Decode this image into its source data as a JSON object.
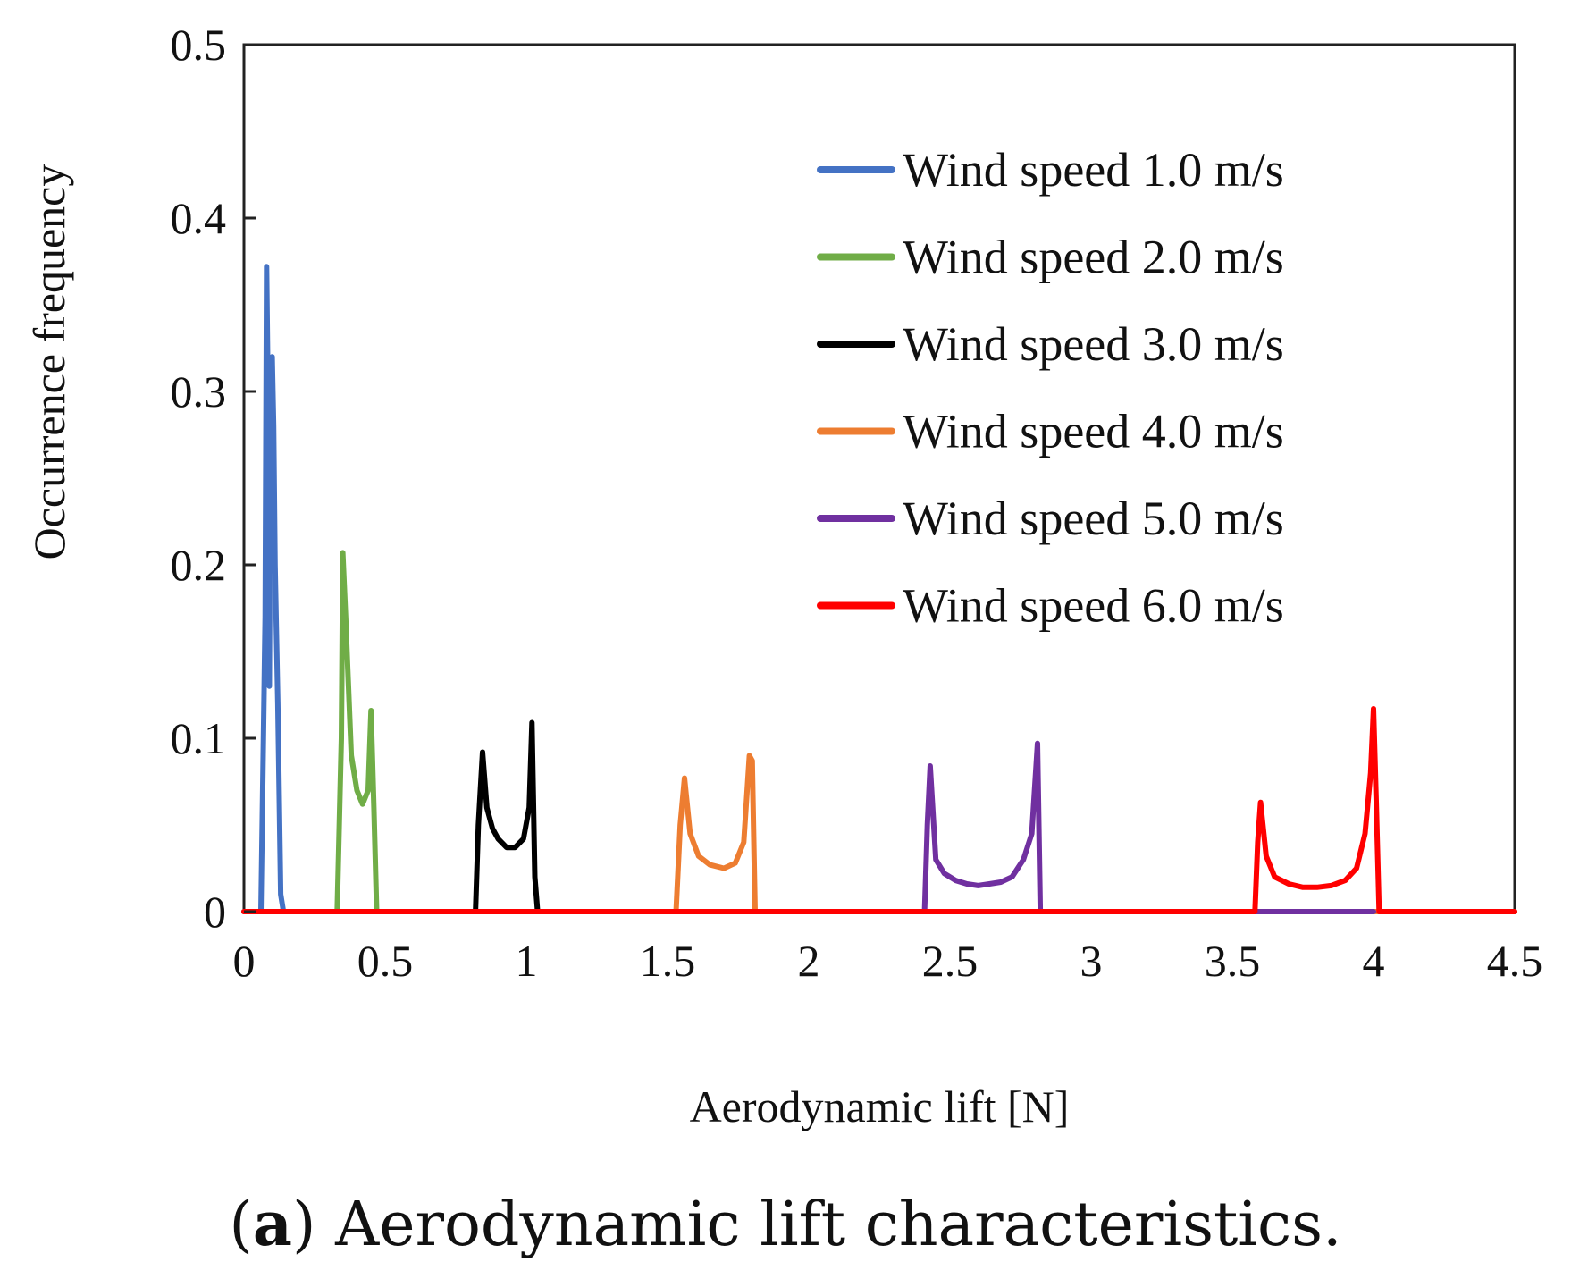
{
  "caption": {
    "label": "a",
    "text": "Aerodynamic lift characteristics."
  },
  "chart_data": {
    "type": "line",
    "title": "",
    "xlabel": "Aerodynamic lift  [N]",
    "ylabel": "Occurrence frequency",
    "xlim": [
      0,
      4.5
    ],
    "ylim": [
      0,
      0.5
    ],
    "xticks": [
      0,
      0.5,
      1,
      1.5,
      2,
      2.5,
      3,
      3.5,
      4,
      4.5
    ],
    "xtick_labels": [
      "0",
      "0.5",
      "1",
      "1.5",
      "2",
      "2.5",
      "3",
      "3.5",
      "4",
      "4.5"
    ],
    "yticks": [
      0,
      0.1,
      0.2,
      0.3,
      0.4,
      0.5
    ],
    "ytick_labels": [
      "0",
      "0.1",
      "0.2",
      "0.3",
      "0.4",
      "0.5"
    ],
    "grid": false,
    "legend_position": "top-right",
    "series": [
      {
        "name": "Wind speed 1.0 m/s",
        "color": "#4472c4",
        "x": [
          0.0,
          0.06,
          0.075,
          0.08,
          0.085,
          0.09,
          0.095,
          0.1,
          0.105,
          0.11,
          0.12,
          0.13,
          0.14,
          4.5
        ],
        "y": [
          0,
          0,
          0.17,
          0.372,
          0.3,
          0.13,
          0.31,
          0.32,
          0.28,
          0.2,
          0.12,
          0.01,
          0,
          0
        ]
      },
      {
        "name": "Wind speed 2.0 m/s",
        "color": "#70ad47",
        "x": [
          0.0,
          0.33,
          0.345,
          0.35,
          0.36,
          0.38,
          0.4,
          0.42,
          0.44,
          0.45,
          0.46,
          0.47,
          4.5
        ],
        "y": [
          0,
          0,
          0.1,
          0.207,
          0.17,
          0.09,
          0.07,
          0.062,
          0.07,
          0.116,
          0.06,
          0,
          0
        ]
      },
      {
        "name": "Wind speed 3.0 m/s",
        "color": "#000000",
        "x": [
          0.0,
          0.82,
          0.83,
          0.845,
          0.86,
          0.88,
          0.9,
          0.93,
          0.96,
          0.99,
          1.01,
          1.02,
          1.03,
          1.04,
          4.5
        ],
        "y": [
          0,
          0,
          0.05,
          0.092,
          0.06,
          0.048,
          0.042,
          0.037,
          0.037,
          0.042,
          0.06,
          0.109,
          0.02,
          0,
          0
        ]
      },
      {
        "name": "Wind speed 4.0 m/s",
        "color": "#ed7d31",
        "x": [
          0.0,
          1.53,
          1.545,
          1.56,
          1.58,
          1.61,
          1.65,
          1.7,
          1.74,
          1.77,
          1.79,
          1.8,
          1.81,
          4.5
        ],
        "y": [
          0,
          0,
          0.05,
          0.077,
          0.045,
          0.032,
          0.027,
          0.025,
          0.028,
          0.04,
          0.09,
          0.087,
          0,
          0
        ]
      },
      {
        "name": "Wind speed 5.0 m/s",
        "color": "#7030a0",
        "x": [
          0.0,
          2.41,
          2.42,
          2.43,
          2.45,
          2.48,
          2.52,
          2.56,
          2.6,
          2.64,
          2.68,
          2.72,
          2.76,
          2.79,
          2.81,
          2.82,
          3.6,
          4.0
        ],
        "y": [
          0,
          0,
          0.05,
          0.084,
          0.03,
          0.022,
          0.018,
          0.016,
          0.015,
          0.016,
          0.017,
          0.02,
          0.03,
          0.045,
          0.097,
          0,
          0,
          0
        ]
      },
      {
        "name": "Wind speed 6.0 m/s",
        "color": "#ff0000",
        "x": [
          0.0,
          3.58,
          3.59,
          3.6,
          3.62,
          3.65,
          3.7,
          3.75,
          3.8,
          3.85,
          3.9,
          3.94,
          3.97,
          3.99,
          4.0,
          4.01,
          4.02,
          4.5
        ],
        "y": [
          0,
          0,
          0.04,
          0.063,
          0.032,
          0.02,
          0.016,
          0.014,
          0.014,
          0.015,
          0.018,
          0.025,
          0.045,
          0.08,
          0.117,
          0.06,
          0,
          0
        ]
      }
    ]
  }
}
